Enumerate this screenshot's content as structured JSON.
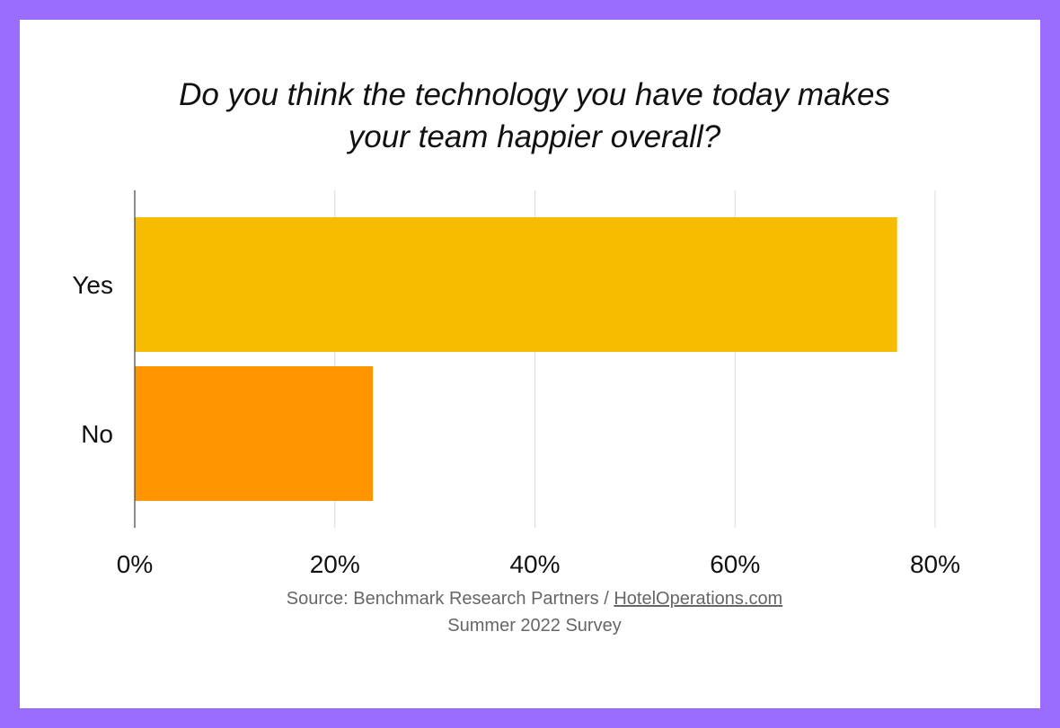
{
  "chart_data": {
    "type": "bar",
    "orientation": "horizontal",
    "title_lines": [
      "Do you think the technology you have today makes",
      "your team happier overall?"
    ],
    "categories": [
      "Yes",
      "No"
    ],
    "values": [
      76.2,
      23.8
    ],
    "unit": "%",
    "xlim": [
      0,
      80
    ],
    "x_ticks": [
      0,
      20,
      40,
      60,
      80
    ],
    "x_tick_labels": [
      "0%",
      "20%",
      "40%",
      "60%",
      "80%"
    ],
    "bar_colors": [
      "#f7bb00",
      "#ff9500"
    ],
    "grid": true,
    "legend": "none"
  },
  "footer": {
    "source_prefix": "Source: Benchmark Research Partners / ",
    "source_link": "HotelOperations.com",
    "survey": "Summer 2022 Survey"
  },
  "colors": {
    "frame": "#9b6dff",
    "background": "#ffffff",
    "gridline": "#d9d9d9"
  }
}
